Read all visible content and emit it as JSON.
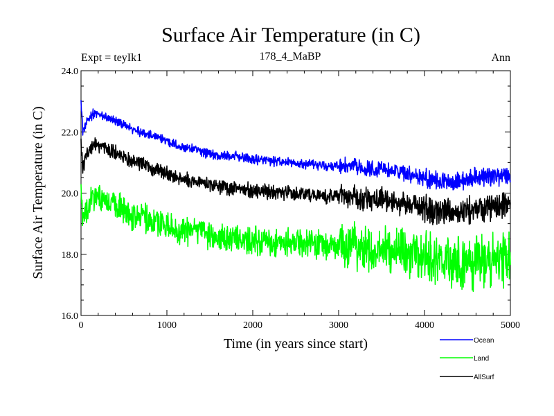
{
  "chart_data": {
    "type": "line",
    "title": "Surface Air Temperature (in C)",
    "subtitle_left": "Expt = teyIk1",
    "subtitle_center": "178_4_MaBP",
    "subtitle_right": "Ann",
    "xlabel": "Time (in years since start)",
    "ylabel": "Surface Air Temperature (in C)",
    "xlim": [
      0,
      5000
    ],
    "ylim": [
      16.0,
      24.0
    ],
    "xticks": [
      0,
      1000,
      2000,
      3000,
      4000,
      5000
    ],
    "xtick_labels": [
      "0",
      "1000",
      "2000",
      "3000",
      "4000",
      "5000"
    ],
    "yticks": [
      16.0,
      18.0,
      20.0,
      22.0,
      24.0
    ],
    "ytick_labels": [
      "16.0",
      "18.0",
      "20.0",
      "22.0",
      "24.0"
    ],
    "grid": false,
    "legend_position": "bottom-right",
    "series": [
      {
        "name": "Ocean",
        "color": "#0000ff",
        "noise": 0.12,
        "x": [
          0,
          20,
          50,
          100,
          150,
          200,
          400,
          600,
          800,
          1000,
          1200,
          1400,
          1600,
          1800,
          2000,
          2200,
          2400,
          2600,
          2800,
          3000,
          3200,
          3400,
          3600,
          3800,
          4000,
          4200,
          4400,
          4600,
          4800,
          5000
        ],
        "y": [
          23.1,
          22.0,
          22.2,
          22.5,
          22.6,
          22.55,
          22.35,
          22.1,
          21.9,
          21.7,
          21.5,
          21.35,
          21.2,
          21.2,
          21.1,
          21.05,
          21.0,
          20.95,
          20.9,
          20.9,
          20.85,
          20.8,
          20.75,
          20.65,
          20.5,
          20.4,
          20.4,
          20.5,
          20.55,
          20.6
        ]
      },
      {
        "name": "Land",
        "color": "#00ff00",
        "noise": 0.35,
        "x": [
          0,
          20,
          50,
          100,
          150,
          200,
          400,
          600,
          800,
          1000,
          1200,
          1400,
          1600,
          1800,
          2000,
          2200,
          2400,
          2600,
          2800,
          3000,
          3200,
          3400,
          3600,
          3800,
          4000,
          4200,
          4400,
          4600,
          4800,
          5000
        ],
        "y": [
          20.2,
          19.0,
          19.3,
          19.7,
          19.85,
          19.8,
          19.6,
          19.3,
          19.1,
          18.95,
          18.8,
          18.65,
          18.55,
          18.5,
          18.45,
          18.4,
          18.4,
          18.35,
          18.3,
          18.3,
          18.25,
          18.2,
          18.15,
          18.0,
          17.85,
          17.75,
          17.7,
          17.75,
          17.8,
          17.85
        ]
      },
      {
        "name": "AllSurf",
        "color": "#000000",
        "noise": 0.18,
        "x": [
          0,
          20,
          50,
          100,
          150,
          200,
          400,
          600,
          800,
          1000,
          1200,
          1400,
          1600,
          1800,
          2000,
          2200,
          2400,
          2600,
          2800,
          3000,
          3200,
          3400,
          3600,
          3800,
          4000,
          4200,
          4400,
          4600,
          4800,
          5000
        ],
        "y": [
          21.6,
          20.8,
          21.1,
          21.45,
          21.6,
          21.55,
          21.3,
          21.05,
          20.85,
          20.65,
          20.45,
          20.3,
          20.2,
          20.15,
          20.1,
          20.05,
          20.0,
          19.95,
          19.9,
          19.9,
          19.85,
          19.8,
          19.75,
          19.65,
          19.5,
          19.4,
          19.4,
          19.5,
          19.55,
          19.6
        ]
      }
    ]
  }
}
